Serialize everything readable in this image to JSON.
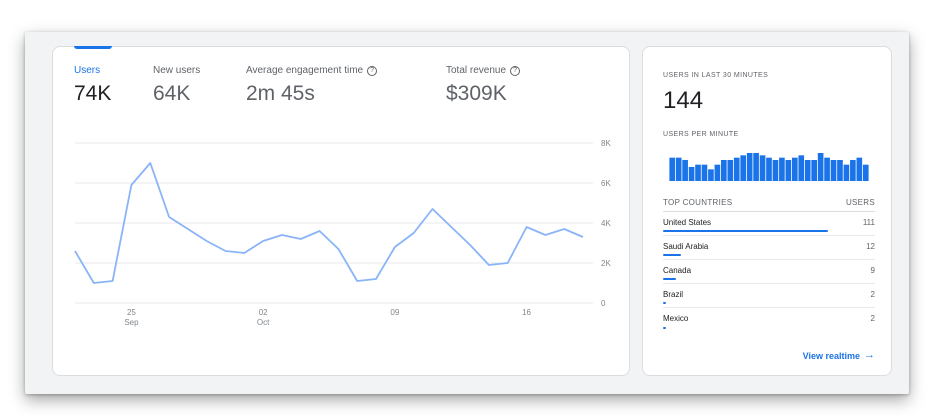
{
  "metrics": [
    {
      "label": "Users",
      "value": "74K",
      "help": false,
      "active": true
    },
    {
      "label": "New users",
      "value": "64K",
      "help": false,
      "active": false
    },
    {
      "label": "Average engagement time",
      "value": "2m 45s",
      "help": true,
      "active": false
    },
    {
      "label": "Total revenue",
      "value": "$309K",
      "help": true,
      "active": false
    }
  ],
  "help_glyph": "?",
  "chart_data": {
    "type": "line",
    "series": [
      {
        "values": [
          2600,
          1000,
          1100,
          5900,
          7000,
          4300,
          3700,
          3100,
          2600,
          2500,
          3100,
          3400,
          3200,
          3600,
          2700,
          1100,
          1200,
          2800,
          3500,
          4700,
          3800,
          2900,
          1900,
          2000,
          3800,
          3400,
          3700,
          3300
        ]
      }
    ],
    "x_tick_labels": [
      {
        "index": 3,
        "day": "25",
        "month": "Sep"
      },
      {
        "index": 10,
        "day": "02",
        "month": "Oct"
      },
      {
        "index": 17,
        "day": "09",
        "month": ""
      },
      {
        "index": 24,
        "day": "16",
        "month": ""
      }
    ],
    "y_ticks": [
      0,
      2000,
      4000,
      6000,
      8000
    ],
    "y_tick_labels": [
      "0",
      "2K",
      "4K",
      "6K",
      "8K"
    ],
    "ylim": [
      0,
      8000
    ],
    "grid": true,
    "color": "#8ab4f8"
  },
  "realtime": {
    "title": "USERS IN LAST 30 MINUTES",
    "count": "144",
    "per_minute_label": "USERS PER MINUTE",
    "per_minute": [
      10,
      10,
      9,
      6,
      7,
      7,
      5,
      7,
      9,
      9,
      10,
      11,
      12,
      12,
      11,
      10,
      9,
      10,
      9,
      10,
      11,
      9,
      9,
      12,
      10,
      9,
      9,
      7,
      9,
      10,
      7
    ],
    "countries_header": "TOP COUNTRIES",
    "users_header": "USERS",
    "countries": [
      {
        "name": "United States",
        "users": 111
      },
      {
        "name": "Saudi Arabia",
        "users": 12
      },
      {
        "name": "Canada",
        "users": 9
      },
      {
        "name": "Brazil",
        "users": 2
      },
      {
        "name": "Mexico",
        "users": 2
      }
    ],
    "link_label": "View realtime",
    "link_arrow": "→",
    "bar_color": "#1a73e8"
  }
}
